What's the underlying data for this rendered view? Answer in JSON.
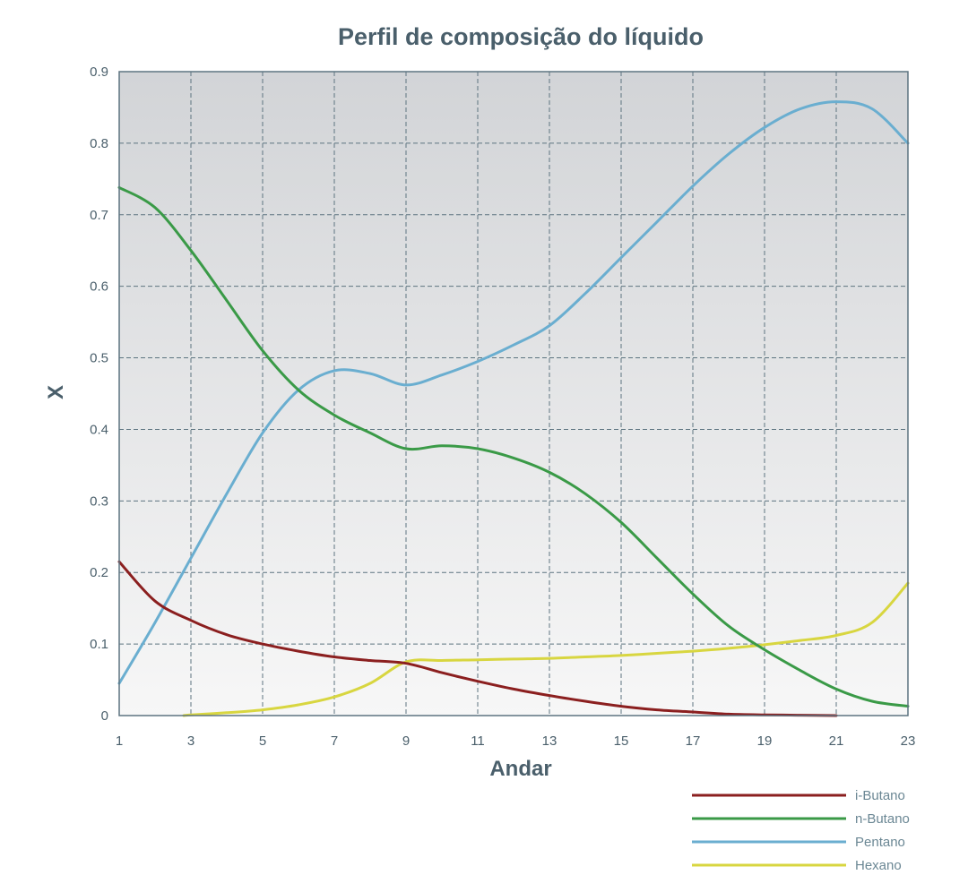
{
  "chart_data": {
    "type": "line",
    "title": "Perfil de composição do líquido",
    "xlabel": "Andar",
    "ylabel": "X",
    "xlim": [
      1,
      23
    ],
    "ylim": [
      0,
      0.9
    ],
    "x_ticks": [
      1,
      3,
      5,
      7,
      9,
      11,
      13,
      15,
      17,
      19,
      21,
      23
    ],
    "y_ticks": [
      0,
      0.1,
      0.2,
      0.3,
      0.4,
      0.5,
      0.6,
      0.7,
      0.8,
      0.9
    ],
    "y_tick_labels": [
      "0",
      "0.1",
      "0.2",
      "0.3",
      "0.4",
      "0.5",
      "0.6",
      "0.7",
      "0.8",
      "0.9"
    ],
    "grid": true,
    "legend_position": "bottom-right",
    "series": [
      {
        "name": "i-Butano",
        "color": "#8b1f1f",
        "x": [
          1,
          2,
          3,
          4,
          5,
          6,
          7,
          8,
          9,
          10,
          11,
          12,
          13,
          14,
          15,
          16,
          17,
          18,
          19,
          20,
          21
        ],
        "y": [
          0.215,
          0.16,
          0.133,
          0.113,
          0.1,
          0.09,
          0.082,
          0.077,
          0.073,
          0.06,
          0.048,
          0.037,
          0.028,
          0.02,
          0.013,
          0.008,
          0.005,
          0.002,
          0.001,
          0.0005,
          0.0
        ]
      },
      {
        "name": "n-Butano",
        "color": "#3a9a47",
        "x": [
          1,
          2,
          3,
          4,
          5,
          6,
          7,
          8,
          9,
          10,
          11,
          12,
          13,
          14,
          15,
          16,
          17,
          18,
          19,
          20,
          21,
          22,
          23
        ],
        "y": [
          0.738,
          0.71,
          0.65,
          0.58,
          0.51,
          0.455,
          0.42,
          0.395,
          0.373,
          0.377,
          0.373,
          0.36,
          0.34,
          0.31,
          0.27,
          0.22,
          0.17,
          0.125,
          0.092,
          0.063,
          0.037,
          0.02,
          0.013
        ]
      },
      {
        "name": "Pentano",
        "color": "#6aaed0",
        "x": [
          1,
          2,
          3,
          4,
          5,
          6,
          7,
          8,
          9,
          10,
          11,
          12,
          13,
          14,
          15,
          16,
          17,
          18,
          19,
          20,
          21,
          22,
          23
        ],
        "y": [
          0.045,
          0.13,
          0.22,
          0.31,
          0.395,
          0.455,
          0.482,
          0.478,
          0.462,
          0.476,
          0.495,
          0.518,
          0.545,
          0.59,
          0.64,
          0.69,
          0.74,
          0.785,
          0.822,
          0.848,
          0.858,
          0.848,
          0.8
        ]
      },
      {
        "name": "Hexano",
        "color": "#d8d640",
        "x": [
          2.8,
          3,
          4,
          5,
          6,
          7,
          8,
          9,
          10,
          11,
          12,
          13,
          14,
          15,
          16,
          17,
          18,
          19,
          20,
          21,
          22,
          23
        ],
        "y": [
          0.0,
          0.001,
          0.004,
          0.008,
          0.015,
          0.026,
          0.045,
          0.075,
          0.077,
          0.078,
          0.079,
          0.08,
          0.082,
          0.084,
          0.087,
          0.09,
          0.094,
          0.099,
          0.105,
          0.112,
          0.13,
          0.185
        ]
      }
    ]
  }
}
